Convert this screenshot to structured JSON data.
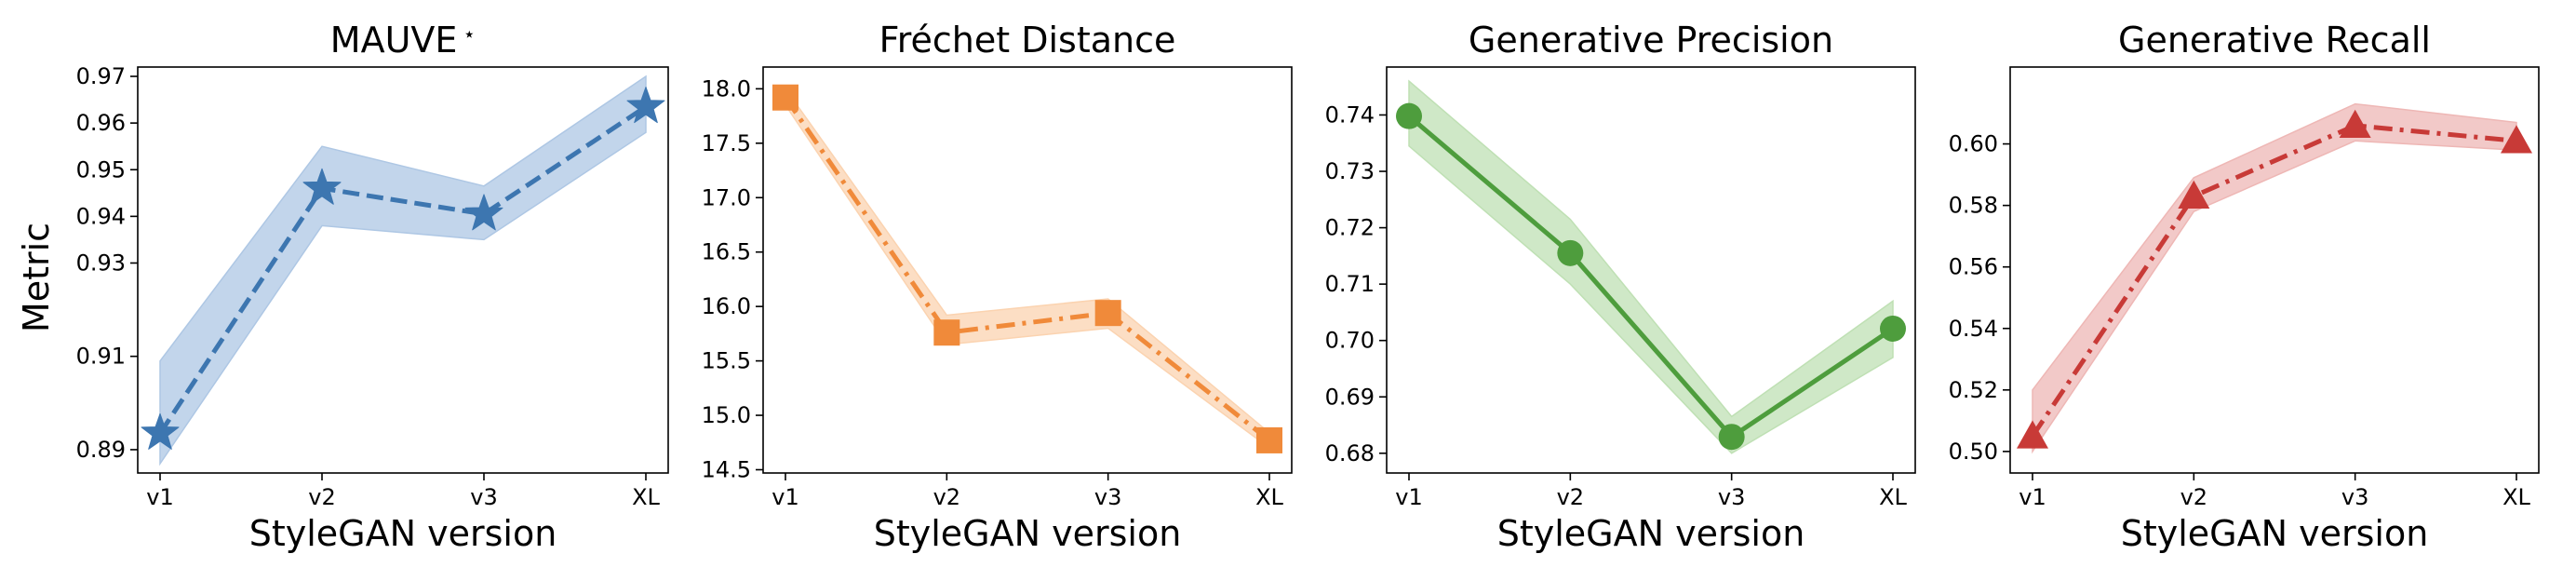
{
  "figure": {
    "ylabel": "Metric"
  },
  "chart_data": [
    {
      "type": "line",
      "title": "MAUVE",
      "title_mark": "⋆",
      "xlabel": "StyleGAN version",
      "ylabel": "Metric",
      "categories": [
        "v1",
        "v2",
        "v3",
        "XL"
      ],
      "values": [
        0.8935,
        0.946,
        0.9405,
        0.9635
      ],
      "band_lower": [
        0.887,
        0.938,
        0.935,
        0.958
      ],
      "band_upper": [
        0.909,
        0.955,
        0.9465,
        0.97
      ],
      "ylim": [
        0.885,
        0.972
      ],
      "yticks": [
        0.89,
        0.91,
        0.93,
        0.94,
        0.95,
        0.96,
        0.97
      ],
      "ytick_labels": [
        "0.89",
        "0.91",
        "0.93",
        "0.94",
        "0.95",
        "0.96",
        "0.97"
      ],
      "color": "#3d76b0",
      "band_color": "#aec7e4",
      "line_style": "dashed",
      "marker": "star",
      "grid": false
    },
    {
      "type": "line",
      "title": "Fréchet Distance",
      "xlabel": "StyleGAN version",
      "categories": [
        "v1",
        "v2",
        "v3",
        "XL"
      ],
      "values": [
        17.92,
        15.76,
        15.94,
        14.77
      ],
      "band_lower": [
        17.85,
        15.65,
        15.8,
        14.7
      ],
      "band_upper": [
        18.0,
        15.92,
        16.07,
        14.84
      ],
      "ylim": [
        14.47,
        18.2
      ],
      "yticks": [
        14.5,
        15.0,
        15.5,
        16.0,
        16.5,
        17.0,
        17.5,
        18.0
      ],
      "ytick_labels": [
        "14.5",
        "15.0",
        "15.5",
        "16.0",
        "16.5",
        "17.0",
        "17.5",
        "18.0"
      ],
      "color": "#f08a3a",
      "band_color": "#fbd3b0",
      "line_style": "dashdot",
      "marker": "square",
      "grid": false
    },
    {
      "type": "line",
      "title": "Generative Precision",
      "xlabel": "StyleGAN version",
      "categories": [
        "v1",
        "v2",
        "v3",
        "XL"
      ],
      "values": [
        0.7398,
        0.7155,
        0.6829,
        0.7021
      ],
      "band_lower": [
        0.7345,
        0.71,
        0.68,
        0.697
      ],
      "band_upper": [
        0.746,
        0.7215,
        0.6865,
        0.707
      ],
      "ylim": [
        0.6765,
        0.7485
      ],
      "yticks": [
        0.68,
        0.69,
        0.7,
        0.71,
        0.72,
        0.73,
        0.74
      ],
      "ytick_labels": [
        "0.68",
        "0.69",
        "0.70",
        "0.71",
        "0.72",
        "0.73",
        "0.74"
      ],
      "color": "#4e9d3d",
      "band_color": "#bfe0b4",
      "line_style": "solid",
      "marker": "circle",
      "grid": false
    },
    {
      "type": "line",
      "title": "Generative Recall",
      "xlabel": "StyleGAN version",
      "categories": [
        "v1",
        "v2",
        "v3",
        "XL"
      ],
      "values": [
        0.505,
        0.583,
        0.606,
        0.601
      ],
      "band_lower": [
        0.5,
        0.578,
        0.601,
        0.598
      ],
      "band_upper": [
        0.52,
        0.589,
        0.613,
        0.607
      ],
      "ylim": [
        0.493,
        0.625
      ],
      "yticks": [
        0.5,
        0.52,
        0.54,
        0.56,
        0.58,
        0.6
      ],
      "ytick_labels": [
        "0.50",
        "0.52",
        "0.54",
        "0.56",
        "0.58",
        "0.60"
      ],
      "color": "#c83a37",
      "band_color": "#eeb7b5",
      "line_style": "dashdot",
      "marker": "triangle",
      "grid": false
    }
  ]
}
